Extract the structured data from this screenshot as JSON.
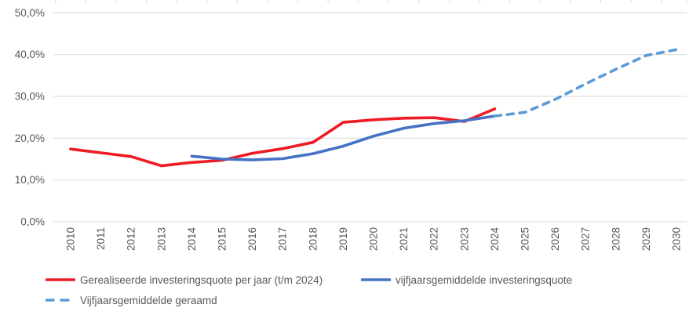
{
  "chart_data": {
    "type": "line",
    "x": [
      "2010",
      "2011",
      "2012",
      "2013",
      "2014",
      "2015",
      "2016",
      "2017",
      "2018",
      "2019",
      "2020",
      "2021",
      "2022",
      "2023",
      "2024",
      "2025",
      "2026",
      "2027",
      "2028",
      "2029",
      "2030"
    ],
    "series": [
      {
        "name": "Gerealiseerde investeringsquote per jaar (t/m 2024)",
        "color": "#ed1c24",
        "dash": false,
        "values": [
          17.4,
          16.5,
          15.6,
          13.4,
          14.2,
          14.7,
          16.4,
          17.5,
          19.0,
          23.8,
          24.4,
          24.8,
          24.9,
          24.0,
          27.0,
          null,
          null,
          null,
          null,
          null,
          null
        ]
      },
      {
        "name": "vijfjaarsgemiddelde investeringsquote",
        "color": "#4472c4",
        "dash": false,
        "values": [
          null,
          null,
          null,
          null,
          15.7,
          15.0,
          14.8,
          15.1,
          16.3,
          18.1,
          20.5,
          22.4,
          23.5,
          24.2,
          25.3,
          null,
          null,
          null,
          null,
          null,
          null
        ]
      },
      {
        "name": "Vijfjaarsgemiddelde geraamd",
        "color": "#5b9bd5",
        "dash": true,
        "values": [
          null,
          null,
          null,
          null,
          null,
          null,
          null,
          null,
          null,
          null,
          null,
          null,
          null,
          null,
          25.3,
          26.2,
          29.3,
          33.0,
          36.5,
          39.8,
          41.2
        ]
      }
    ],
    "title": "",
    "xlabel": "",
    "ylabel": "",
    "ylim": [
      0,
      50
    ],
    "grid": true,
    "legend_position": "bottom-left",
    "yticks": [
      {
        "value": 0,
        "label": "0,0%"
      },
      {
        "value": 10,
        "label": "10,0%"
      },
      {
        "value": 20,
        "label": "20,0%"
      },
      {
        "value": 30,
        "label": "30,0%"
      },
      {
        "value": 40,
        "label": "40,0%"
      },
      {
        "value": 50,
        "label": "50,0%"
      }
    ]
  },
  "colors": {
    "gridline": "#d9d9d9",
    "axis_text": "#595959",
    "background": "#ffffff"
  }
}
